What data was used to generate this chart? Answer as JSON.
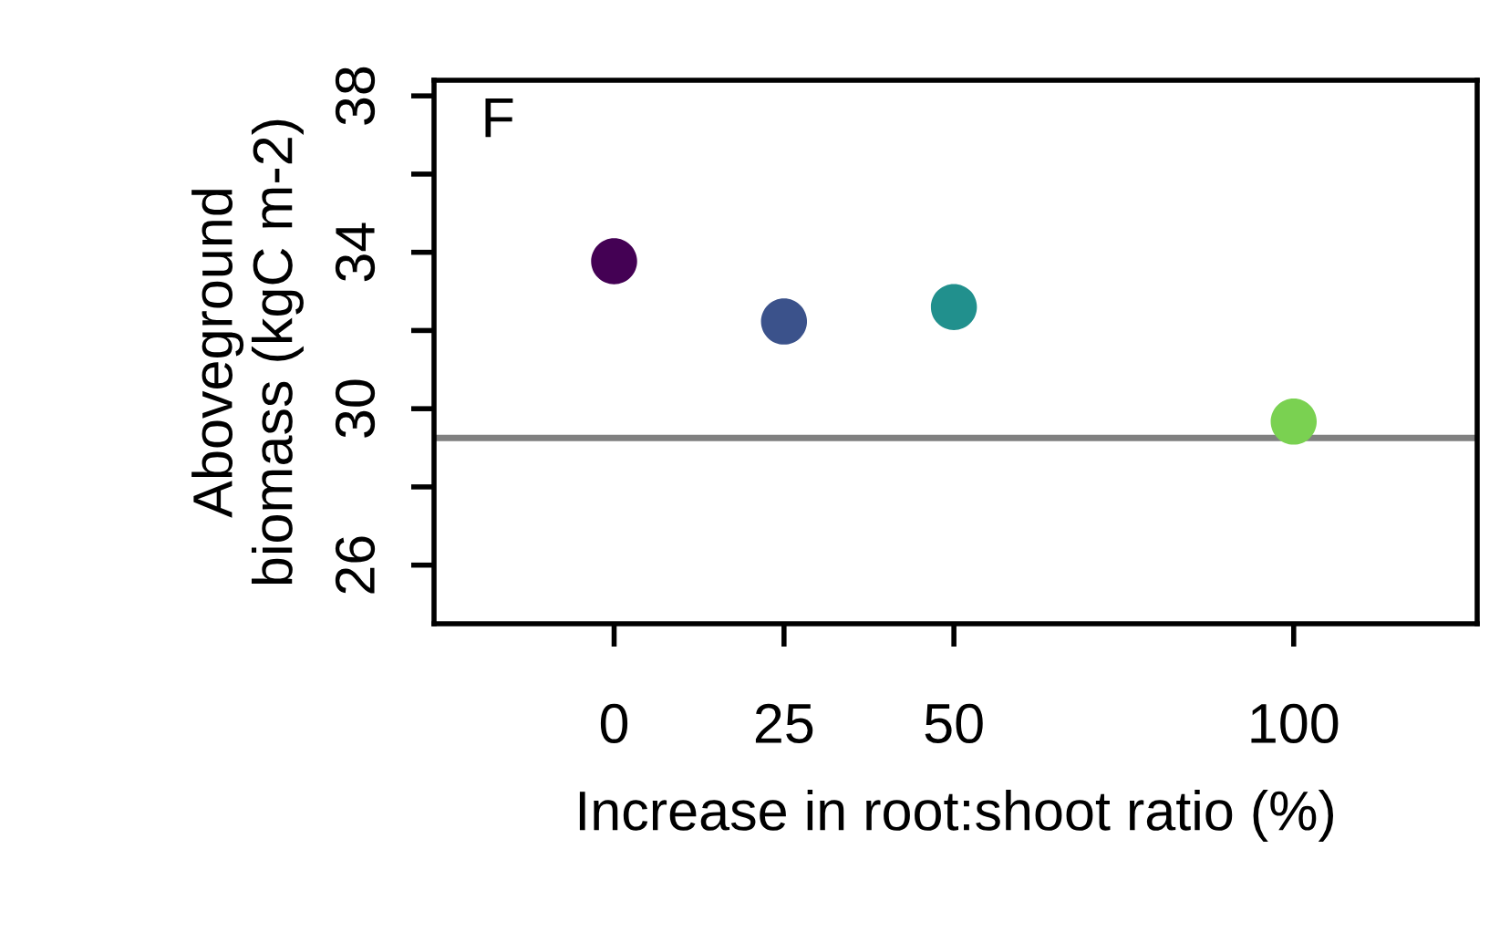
{
  "chart_data": {
    "type": "scatter",
    "xlabel": "Increase in root:shoot ratio (%)",
    "ylabel": "Aboveground\nbiomass (kgC m-2)",
    "x": [
      0,
      25,
      50,
      100
    ],
    "values": [
      33.77,
      32.23,
      32.6,
      29.67
    ],
    "colors": [
      "#440154",
      "#3b528b",
      "#21908d",
      "#7ad151"
    ],
    "marker": "circle",
    "xlim": [
      -26.5,
      127
    ],
    "xticks": [
      0,
      25,
      50,
      100
    ],
    "ylim": [
      24.5,
      38.4
    ],
    "yticks": [
      26,
      {
        "value": 28,
        "label": null
      },
      30,
      {
        "value": 32,
        "label": null
      },
      34,
      {
        "value": 36,
        "label": null
      },
      38
    ],
    "ref_lines": [
      {
        "axis": "y",
        "value": 29.25,
        "color": "#808080"
      }
    ],
    "annotations": [
      "F"
    ],
    "grid": false,
    "legend": false
  }
}
